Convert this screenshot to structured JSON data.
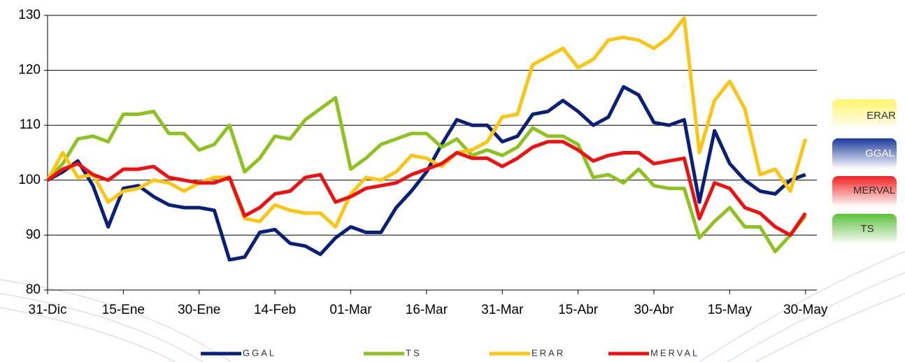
{
  "chart_data": {
    "type": "line",
    "categories": [
      "31-Dic",
      null,
      null,
      null,
      null,
      "15-Ene",
      null,
      null,
      null,
      null,
      "30-Ene",
      null,
      null,
      null,
      null,
      "14-Feb",
      null,
      null,
      null,
      null,
      "01-Mar",
      null,
      null,
      null,
      null,
      "16-Mar",
      null,
      null,
      null,
      null,
      "31-Mar",
      null,
      null,
      null,
      null,
      "15-Abr",
      null,
      null,
      null,
      null,
      "30-Abr",
      null,
      null,
      null,
      null,
      "15-May",
      null,
      null,
      null,
      null,
      "30-May"
    ],
    "series": [
      {
        "name": "GGAL",
        "color": "#0a1f7a",
        "values": [
          100,
          101.5,
          103.5,
          99,
          91.5,
          98.5,
          99,
          97,
          95.5,
          95,
          95,
          94.5,
          85.5,
          86,
          90.5,
          91,
          88.5,
          88,
          86.5,
          89.5,
          91.5,
          90.5,
          90.5,
          95,
          98,
          101.5,
          106.5,
          111,
          110,
          110,
          107,
          108,
          112,
          112.5,
          114.5,
          112.5,
          110,
          111.5,
          117,
          115.5,
          110.5,
          110,
          111,
          96,
          109,
          103,
          100,
          98,
          97.5,
          100,
          101
        ]
      },
      {
        "name": "TS",
        "color": "#8ec21f",
        "values": [
          100,
          103,
          107.5,
          108,
          107,
          112,
          112,
          112.5,
          108.5,
          108.5,
          105.5,
          106.5,
          110,
          101.5,
          104,
          108,
          107.5,
          111,
          113,
          115,
          102,
          104,
          106.5,
          107.5,
          108.5,
          108.5,
          106,
          107.5,
          104.5,
          105.5,
          104.5,
          106,
          109.5,
          108,
          108,
          106.5,
          100.5,
          101,
          99.5,
          102,
          99,
          98.5,
          98.5,
          89.5,
          92.5,
          95,
          91.5,
          91.5,
          87,
          90,
          93.5
        ]
      },
      {
        "name": "ERAR",
        "color": "#fcc512",
        "values": [
          100,
          105,
          100.5,
          101,
          96,
          98,
          98.5,
          100,
          99.5,
          98,
          99.5,
          100.5,
          100.5,
          93,
          92.5,
          95.5,
          94.5,
          94,
          94,
          91.5,
          97.5,
          100.5,
          100,
          101.5,
          104.5,
          104,
          102.5,
          105,
          105.5,
          107,
          111.5,
          112,
          121,
          122.5,
          124,
          120.5,
          122,
          125.5,
          126,
          125.5,
          124,
          126,
          129.5,
          105,
          114.5,
          118,
          113,
          101,
          102,
          98,
          107.5
        ]
      },
      {
        "name": "MERVAL",
        "color": "#f01010",
        "values": [
          100,
          102,
          103,
          101,
          100,
          102,
          102,
          102.5,
          100.5,
          100,
          99.5,
          99.5,
          100.5,
          93.5,
          95,
          97.5,
          98,
          100.5,
          101,
          96,
          97,
          98.5,
          99,
          99.5,
          101,
          102,
          103,
          105,
          104,
          104,
          102.5,
          104,
          106,
          107,
          107,
          105.5,
          103.5,
          104.5,
          105,
          105,
          103,
          103.5,
          104,
          93,
          99.5,
          98.5,
          95,
          94,
          91.5,
          90,
          94
        ]
      }
    ],
    "ylim": [
      80,
      130
    ],
    "yticks": [
      80,
      90,
      100,
      110,
      120,
      130
    ],
    "grid": true,
    "legend": "bottom"
  }
}
